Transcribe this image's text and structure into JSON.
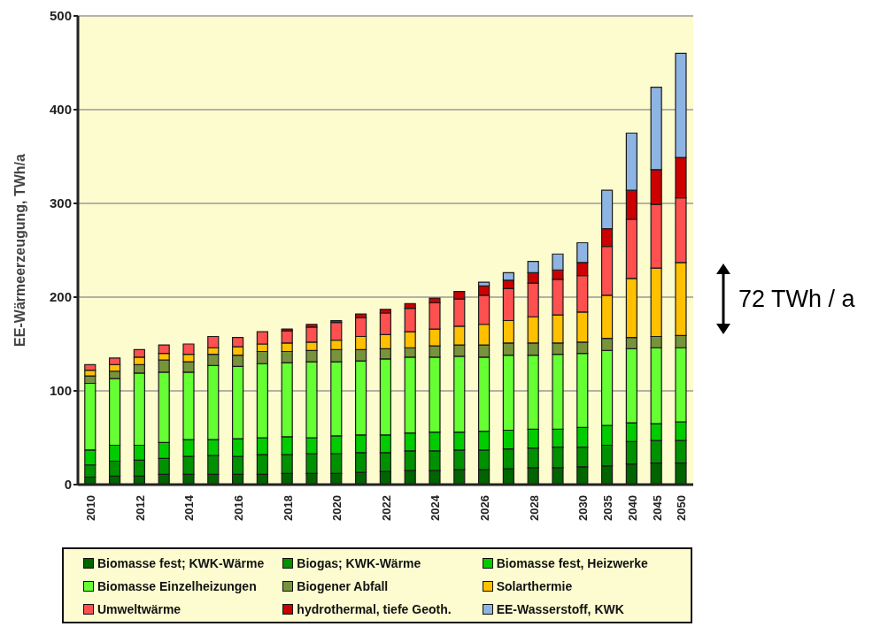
{
  "chart_data": {
    "type": "bar",
    "stacked": true,
    "ylabel": "EE-Wärmeerzeugung, TWh/a",
    "categories": [
      "2010",
      null,
      "2012",
      null,
      "2014",
      null,
      "2016",
      null,
      "2018",
      null,
      "2020",
      null,
      "2022",
      null,
      "2024",
      null,
      "2026",
      null,
      "2028",
      null,
      "2030",
      "2035",
      "2040",
      "2045",
      "2050"
    ],
    "series": [
      {
        "name": "Biomasse fest; KWK-Wärme",
        "color": "#006400",
        "values": [
          8,
          9,
          9,
          11,
          11,
          11,
          11,
          11,
          12,
          12,
          12,
          13,
          14,
          15,
          15,
          16,
          16,
          17,
          18,
          18,
          19,
          20,
          22,
          23,
          23
        ]
      },
      {
        "name": "Biogas; KWK-Wärme",
        "color": "#009100",
        "values": [
          13,
          16,
          17,
          17,
          19,
          20,
          19,
          21,
          20,
          21,
          21,
          21,
          20,
          21,
          21,
          21,
          21,
          21,
          21,
          22,
          21,
          22,
          24,
          24,
          24
        ]
      },
      {
        "name": "Biomasse fest, Heizwerke",
        "color": "#00cc00",
        "values": [
          16,
          17,
          16,
          17,
          18,
          17,
          19,
          18,
          19,
          17,
          19,
          19,
          19,
          19,
          20,
          19,
          20,
          20,
          20,
          19,
          21,
          21,
          20,
          18,
          20
        ]
      },
      {
        "name": "Biomasse Einzelheizungen",
        "color": "#66ff33",
        "values": [
          71,
          71,
          77,
          75,
          72,
          79,
          77,
          79,
          79,
          81,
          79,
          79,
          81,
          81,
          80,
          81,
          79,
          80,
          79,
          80,
          79,
          80,
          79,
          81,
          79
        ]
      },
      {
        "name": "Biogener Abfall",
        "color": "#77933c",
        "values": [
          8,
          8,
          9,
          13,
          11,
          12,
          12,
          13,
          12,
          12,
          13,
          12,
          11,
          10,
          12,
          12,
          13,
          13,
          13,
          12,
          12,
          13,
          12,
          12,
          13
        ]
      },
      {
        "name": "Solarthermie",
        "color": "#ffc000",
        "values": [
          6,
          7,
          8,
          7,
          8,
          7,
          9,
          8,
          9,
          9,
          10,
          14,
          15,
          17,
          18,
          20,
          22,
          24,
          28,
          30,
          32,
          46,
          63,
          73,
          78
        ]
      },
      {
        "name": "Umweltwärme",
        "color": "#ff5050",
        "values": [
          6,
          7,
          8,
          9,
          11,
          12,
          10,
          13,
          13,
          16,
          19,
          20,
          23,
          25,
          28,
          29,
          31,
          34,
          36,
          38,
          39,
          52,
          63,
          68,
          69
        ]
      },
      {
        "name": "hydrothermal, tiefe Geoth.",
        "color": "#cc0000",
        "values": [
          null,
          null,
          null,
          null,
          null,
          null,
          null,
          null,
          2,
          3,
          2,
          4,
          4,
          5,
          5,
          8,
          10,
          9,
          11,
          10,
          14,
          19,
          31,
          37,
          43
        ]
      },
      {
        "name": "EE-Wasserstoff, KWK",
        "color": "#8eb4e3",
        "values": [
          null,
          null,
          null,
          null,
          null,
          null,
          null,
          null,
          null,
          null,
          null,
          null,
          null,
          null,
          null,
          null,
          4,
          8,
          12,
          17,
          21,
          41,
          61,
          88,
          111
        ]
      }
    ],
    "ylim": [
      0,
      500
    ],
    "yticks": [
      0,
      100,
      200,
      300,
      400,
      500
    ],
    "grid": "y",
    "legend": "bottom",
    "annotations": [
      "72 TWh / a"
    ]
  }
}
